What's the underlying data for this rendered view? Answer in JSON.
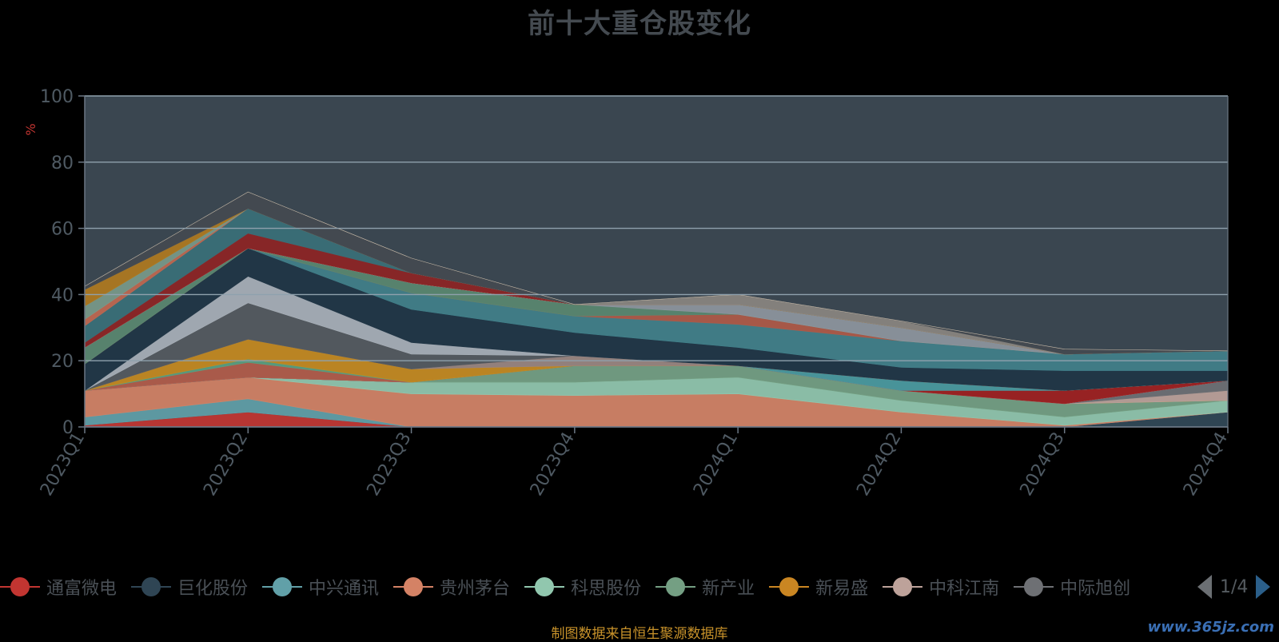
{
  "title": "前十大重仓股变化",
  "footer": "制图数据来自恒生聚源数据库",
  "watermark": "www.365jz.com",
  "pager": {
    "page": "1/4"
  },
  "chart_data": {
    "type": "area",
    "title": "前十大重仓股变化",
    "xlabel": "",
    "ylabel": "%",
    "ylim": [
      0,
      100
    ],
    "yticks": [
      0,
      20,
      40,
      60,
      80,
      100
    ],
    "grid": true,
    "legend_position": "bottom",
    "categories": [
      "2023Q1",
      "2023Q2",
      "2023Q3",
      "2023Q4",
      "2024Q1",
      "2024Q2",
      "2024Q3",
      "2024Q4"
    ],
    "series": [
      {
        "name": "通富微电",
        "color": "#c23531",
        "values": [
          0.5,
          4.5,
          0,
          0,
          0,
          0,
          0,
          0
        ]
      },
      {
        "name": "巨化股份",
        "color": "#2f4554",
        "values": [
          0,
          0,
          0,
          0,
          0,
          0,
          0,
          4.5
        ]
      },
      {
        "name": "中兴通讯",
        "color": "#61a0a8",
        "values": [
          2.5,
          4,
          0,
          0,
          0,
          0,
          0,
          0
        ]
      },
      {
        "name": "贵州茅台",
        "color": "#d48265",
        "values": [
          8,
          6.5,
          10,
          9.5,
          10,
          4.5,
          0.5,
          0
        ]
      },
      {
        "name": "科思股份",
        "color": "#91c7ae",
        "values": [
          0,
          0,
          3.5,
          4,
          5,
          3.5,
          2.5,
          3.5
        ]
      },
      {
        "name": "新产业",
        "color": "#749f83",
        "values": [
          0,
          0,
          0,
          5,
          3.5,
          3,
          4,
          0
        ]
      },
      {
        "name": "新易盛",
        "color": "#ca8622",
        "values": [
          0,
          0,
          0,
          0,
          0,
          0,
          0,
          0
        ]
      },
      {
        "name": "中科江南",
        "color": "#bda29a",
        "values": [
          0,
          0,
          0,
          0,
          0,
          0,
          0,
          3
        ]
      },
      {
        "name": "中际旭创",
        "color": "#6e7074",
        "values": [
          0,
          0,
          0,
          0,
          0,
          0,
          0,
          3
        ]
      },
      {
        "name": "",
        "color": "#546570",
        "values": [
          0,
          0,
          0,
          0,
          0,
          0,
          0,
          0
        ]
      },
      {
        "name": "",
        "color": "#c4ccd3",
        "values": [
          0,
          0,
          0,
          0,
          0,
          0,
          0,
          0
        ]
      },
      {
        "name": "",
        "color": "#a02020",
        "values": [
          0,
          0,
          0,
          0,
          0,
          0,
          4,
          0
        ]
      },
      {
        "name": "",
        "color": "#4a9aa0",
        "values": [
          0,
          0,
          0,
          0,
          0,
          3,
          0,
          0
        ]
      },
      {
        "name": "",
        "color": "#b35c4a",
        "values": [
          0,
          4.5,
          0,
          0,
          0,
          0,
          0,
          0
        ]
      },
      {
        "name": "",
        "color": "#5aa080",
        "values": [
          0,
          1,
          0,
          0,
          0,
          0,
          0,
          0
        ]
      },
      {
        "name": "",
        "color": "#c58a20",
        "values": [
          0,
          6,
          4,
          0,
          0,
          0,
          0,
          0
        ]
      },
      {
        "name": "",
        "color": "#9a8580",
        "values": [
          0,
          0,
          0,
          3,
          0,
          0,
          0,
          0
        ]
      },
      {
        "name": "",
        "color": "#555a60",
        "values": [
          0,
          11,
          4.5,
          0,
          0,
          0,
          0,
          0
        ]
      },
      {
        "name": "",
        "color": "#a8b0b8",
        "values": [
          0,
          8,
          3.5,
          0,
          0,
          0,
          0,
          0
        ]
      },
      {
        "name": "",
        "color": "#203545",
        "values": [
          8,
          8.5,
          10,
          7,
          5.5,
          4,
          6,
          3
        ]
      },
      {
        "name": "",
        "color": "#41808a",
        "values": [
          0,
          0,
          5,
          5,
          7,
          8,
          5,
          6
        ]
      },
      {
        "name": "",
        "color": "#b05a48",
        "values": [
          0,
          0,
          0,
          0,
          3,
          0,
          0,
          0
        ]
      },
      {
        "name": "",
        "color": "#5a8870",
        "values": [
          5,
          0,
          3,
          3.5,
          0,
          0,
          0,
          0
        ]
      },
      {
        "name": "",
        "color": "#8e969e",
        "values": [
          0,
          0,
          0,
          0,
          3,
          4,
          0,
          0
        ]
      },
      {
        "name": "",
        "color": "#e8e8e8",
        "values": [
          0,
          0,
          0,
          0,
          0,
          0,
          0,
          0
        ]
      },
      {
        "name": "",
        "color": "#8e2424",
        "values": [
          1.5,
          4.5,
          3,
          0,
          0,
          0,
          0,
          0
        ]
      },
      {
        "name": "",
        "color": "#3a7078",
        "values": [
          5,
          7.5,
          0,
          0,
          0,
          0,
          0,
          0
        ]
      },
      {
        "name": "",
        "color": "#c06850",
        "values": [
          2,
          0,
          0,
          0,
          0,
          0,
          0,
          0
        ]
      },
      {
        "name": "",
        "color": "#7a9a8a",
        "values": [
          4,
          0,
          0,
          0,
          0,
          0,
          0,
          0
        ]
      },
      {
        "name": "",
        "color": "#b07a20",
        "values": [
          5,
          0,
          0,
          0,
          0,
          0,
          0,
          0
        ]
      },
      {
        "name": "",
        "color": "#8a8580",
        "values": [
          0,
          0,
          0,
          0,
          3,
          2,
          0,
          0
        ]
      },
      {
        "name": "",
        "color": "#444a50",
        "values": [
          1,
          5,
          4.5,
          0,
          0,
          0,
          1.5,
          0
        ]
      },
      {
        "name": "",
        "color": "#c5b9a8",
        "values": [
          0,
          0,
          0,
          0,
          0,
          0,
          0,
          0
        ]
      }
    ]
  },
  "legend": [
    {
      "label": "通富微电",
      "color": "#c23531"
    },
    {
      "label": "巨化股份",
      "color": "#2f4554"
    },
    {
      "label": "中兴通讯",
      "color": "#61a0a8"
    },
    {
      "label": "贵州茅台",
      "color": "#d48265"
    },
    {
      "label": "科思股份",
      "color": "#91c7ae"
    },
    {
      "label": "新产业",
      "color": "#749f83"
    },
    {
      "label": "新易盛",
      "color": "#ca8622"
    },
    {
      "label": "中科江南",
      "color": "#bda29a"
    },
    {
      "label": "中际旭创",
      "color": "#6e7074"
    }
  ]
}
